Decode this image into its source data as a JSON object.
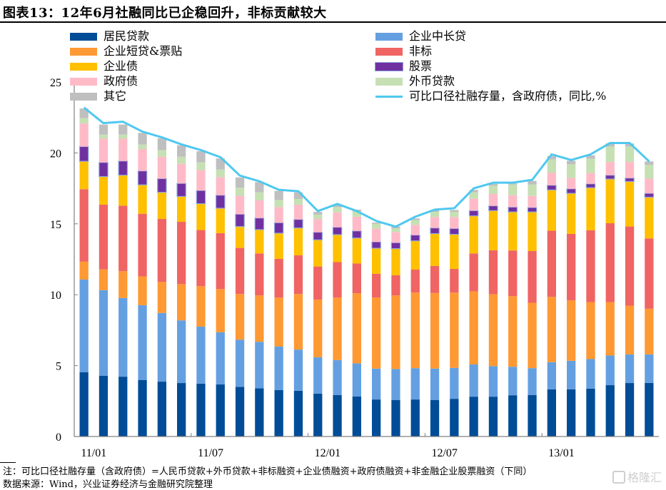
{
  "title": "图表13：12年6月社融同比已企稳回升，非标贡献较大",
  "footnote": "注：可比口径社融存量（含政府债）=人民币贷款+外币贷款+非标融资+企业债融资+政府债融资+非金融企业股票融资（下同）",
  "source": "数据来源：Wind，兴业证券经济与金融研究院整理",
  "watermark": "格隆汇",
  "chart_data": {
    "type": "bar",
    "stacked": true,
    "title": "12年6月社融同比已企稳回升，非标贡献较大",
    "xlabel": "",
    "ylabel": "",
    "ylim": [
      0,
      25
    ],
    "yticks": [
      0,
      5,
      10,
      15,
      20,
      25
    ],
    "xtick_labels": [
      "11/01",
      "11/07",
      "12/01",
      "12/07",
      "13/01"
    ],
    "grid": false,
    "legend_position": "top",
    "categories": [
      "11/01",
      "11/02",
      "11/03",
      "11/04",
      "11/05",
      "11/06",
      "11/07",
      "11/08",
      "11/09",
      "11/10",
      "11/11",
      "11/12",
      "12/01",
      "12/02",
      "12/03",
      "12/04",
      "12/05",
      "12/06",
      "12/07",
      "12/08",
      "12/09",
      "12/10",
      "12/11",
      "12/12",
      "13/01",
      "13/02",
      "13/03",
      "13/04",
      "13/05",
      "13/06"
    ],
    "series": [
      {
        "name": "居民贷款",
        "color": "#004C97",
        "values": [
          4.54,
          4.29,
          4.22,
          3.99,
          3.87,
          3.77,
          3.73,
          3.67,
          3.5,
          3.4,
          3.27,
          3.23,
          3.03,
          2.93,
          2.83,
          2.61,
          2.58,
          2.61,
          2.58,
          2.66,
          2.81,
          2.81,
          2.91,
          2.93,
          3.33,
          3.33,
          3.38,
          3.62,
          3.77,
          3.78
        ]
      },
      {
        "name": "企业中长贷",
        "color": "#64A0E1",
        "values": [
          6.53,
          6.03,
          5.55,
          5.27,
          4.84,
          4.42,
          4.02,
          3.68,
          3.33,
          3.28,
          3.08,
          2.9,
          2.56,
          2.46,
          2.33,
          2.18,
          2.18,
          2.21,
          2.21,
          2.18,
          2.27,
          2.15,
          2.01,
          1.89,
          1.91,
          2.01,
          2.08,
          2.09,
          2.02,
          2.01
        ]
      },
      {
        "name": "企业短贷&票贴",
        "color": "#FF9933",
        "values": [
          1.26,
          1.47,
          1.89,
          2.03,
          2.19,
          2.56,
          2.85,
          3.05,
          3.22,
          3.27,
          3.45,
          3.92,
          4.06,
          4.41,
          4.94,
          5.01,
          5.19,
          5.33,
          5.33,
          5.31,
          5.16,
          5.08,
          4.98,
          4.61,
          4.61,
          4.26,
          4.02,
          3.77,
          3.44,
          3.22
        ]
      },
      {
        "name": "非标",
        "color": "#F06464",
        "values": [
          5.11,
          4.56,
          4.62,
          4.42,
          4.44,
          4.39,
          3.96,
          3.94,
          3.25,
          2.96,
          2.73,
          2.73,
          2.34,
          2.5,
          2.1,
          1.67,
          1.42,
          1.62,
          1.91,
          1.67,
          2.67,
          3.09,
          3.22,
          3.65,
          4.66,
          4.69,
          5.06,
          5.56,
          5.58,
          4.96
        ]
      },
      {
        "name": "企业债",
        "color": "#FFC000",
        "values": [
          1.97,
          1.98,
          2.15,
          2.04,
          1.88,
          1.79,
          1.86,
          1.76,
          1.51,
          1.68,
          1.81,
          1.93,
          1.88,
          1.94,
          1.8,
          1.81,
          1.88,
          2.03,
          2.28,
          2.44,
          2.65,
          2.8,
          2.72,
          2.76,
          2.88,
          2.86,
          3.01,
          3.12,
          3.18,
          2.91
        ]
      },
      {
        "name": "股票",
        "color": "#7030A0",
        "values": [
          1.04,
          1.0,
          1.0,
          0.98,
          0.97,
          0.92,
          0.93,
          0.92,
          0.87,
          0.82,
          0.74,
          0.6,
          0.54,
          0.52,
          0.5,
          0.45,
          0.42,
          0.41,
          0.4,
          0.41,
          0.37,
          0.34,
          0.34,
          0.31,
          0.33,
          0.32,
          0.27,
          0.27,
          0.24,
          0.27
        ]
      },
      {
        "name": "政府债",
        "color": "#FFBAC8",
        "values": [
          1.63,
          1.67,
          1.57,
          1.54,
          1.54,
          1.38,
          1.44,
          1.26,
          1.3,
          1.24,
          1.1,
          1.04,
          0.93,
          1.05,
          1.0,
          0.94,
          0.75,
          0.71,
          0.77,
          0.81,
          0.84,
          0.83,
          0.84,
          0.82,
          0.89,
          0.76,
          0.76,
          0.93,
          1.13,
          1.04
        ]
      },
      {
        "name": "外币贷款",
        "color": "#C6E0B4",
        "values": [
          0.38,
          0.29,
          0.29,
          0.32,
          0.47,
          0.5,
          0.54,
          0.55,
          0.57,
          0.57,
          0.5,
          0.4,
          0.3,
          0.37,
          0.38,
          0.34,
          0.25,
          0.34,
          0.36,
          0.36,
          0.45,
          0.59,
          0.75,
          0.8,
          0.92,
          0.97,
          1.0,
          1.09,
          1.09,
          0.97
        ]
      },
      {
        "name": "其它",
        "color": "#BFBFBF",
        "values": [
          0.67,
          0.71,
          0.71,
          0.82,
          0.84,
          0.81,
          0.79,
          0.78,
          0.72,
          0.72,
          0.64,
          0.47,
          0.2,
          0.14,
          0.12,
          0.08,
          0.13,
          0.12,
          0.14,
          0.14,
          0.17,
          0.13,
          0.08,
          0.26,
          0.25,
          0.25,
          0.25,
          0.22,
          0.22,
          0.24
        ]
      }
    ],
    "line_series": {
      "name": "可比口径社融存量，含政府债，同比,%",
      "color": "#4FC8F0",
      "values": [
        23.2,
        22.1,
        22.2,
        21.5,
        21.1,
        20.6,
        20.2,
        19.7,
        18.4,
        18.0,
        17.4,
        17.3,
        15.9,
        16.4,
        15.9,
        15.2,
        14.8,
        15.5,
        16.0,
        16.1,
        17.5,
        17.9,
        17.9,
        18.1,
        19.9,
        19.5,
        19.9,
        20.7,
        20.7,
        19.4
      ]
    }
  },
  "legend": {
    "left": [
      {
        "label": "居民贷款",
        "series": 0
      },
      {
        "label": "企业短贷&票贴",
        "series": 2
      },
      {
        "label": "企业债",
        "series": 4
      },
      {
        "label": "政府债",
        "series": 6
      },
      {
        "label": "其它",
        "series": 8
      }
    ],
    "right": [
      {
        "label": "企业中长贷",
        "series": 1
      },
      {
        "label": "非标",
        "series": 3
      },
      {
        "label": "股票",
        "series": 5
      },
      {
        "label": "外币贷款",
        "series": 7
      },
      {
        "label": "可比口径社融存量，含政府债，同比,%",
        "series": "line"
      }
    ]
  }
}
